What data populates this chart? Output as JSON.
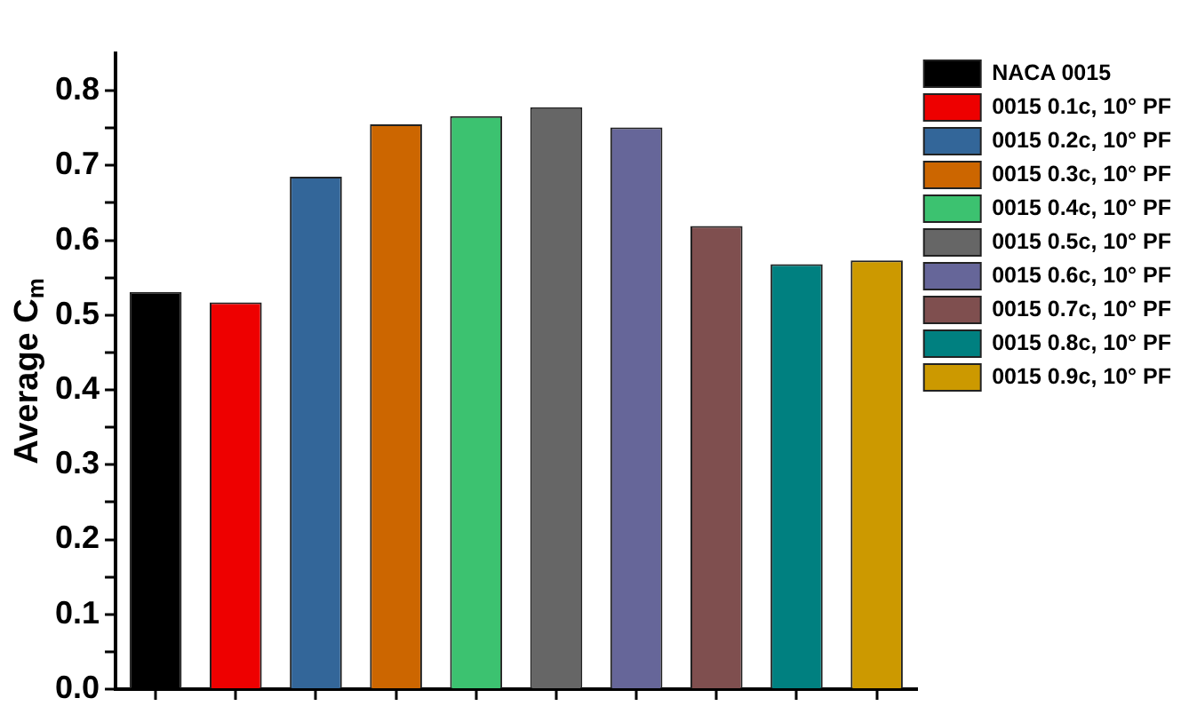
{
  "chart_data": {
    "type": "bar",
    "ylabel": "Average C$_{m}$",
    "categories": [
      null,
      null,
      null,
      null,
      null,
      null,
      null,
      null,
      null,
      null
    ],
    "series": [
      {
        "name": "NACA 0015",
        "color": "#000000",
        "values": [
          0.531,
          null,
          null,
          null,
          null,
          null,
          null,
          null,
          null,
          null
        ]
      },
      {
        "name": "0015 0.1c, 10° PF",
        "color": "#ee0000",
        "values": [
          null,
          0.517,
          null,
          null,
          null,
          null,
          null,
          null,
          null,
          null
        ]
      },
      {
        "name": "0015 0.2c, 10° PF",
        "color": "#336699",
        "values": [
          null,
          null,
          0.685,
          null,
          null,
          null,
          null,
          null,
          null,
          null
        ]
      },
      {
        "name": "0015 0.3c, 10° PF",
        "color": "#cc6600",
        "values": [
          null,
          null,
          null,
          0.755,
          null,
          null,
          null,
          null,
          null,
          null
        ]
      },
      {
        "name": "0015 0.4c, 10° PF",
        "color": "#3cc270",
        "values": [
          null,
          null,
          null,
          null,
          0.766,
          null,
          null,
          null,
          null,
          null
        ]
      },
      {
        "name": "0015 0.5c, 10° PF",
        "color": "#666666",
        "values": [
          null,
          null,
          null,
          null,
          null,
          0.778,
          null,
          null,
          null,
          null
        ]
      },
      {
        "name": "0015 0.6c, 10° PF",
        "color": "#666699",
        "values": [
          null,
          null,
          null,
          null,
          null,
          null,
          0.751,
          null,
          null,
          null
        ]
      },
      {
        "name": "0015 0.7c, 10° PF",
        "color": "#7f4f4f",
        "values": [
          null,
          null,
          null,
          null,
          null,
          null,
          null,
          0.619,
          null,
          null
        ]
      },
      {
        "name": "0015 0.8c, 10° PF",
        "color": "#008080",
        "values": [
          null,
          null,
          null,
          null,
          null,
          null,
          null,
          null,
          0.568,
          null
        ]
      },
      {
        "name": "0015 0.9c, 10° PF",
        "color": "#cc9900",
        "values": [
          null,
          null,
          null,
          null,
          null,
          null,
          null,
          null,
          null,
          0.573
        ]
      }
    ],
    "ylim": [
      0,
      0.85
    ],
    "yticks": [
      {
        "value": 0,
        "label": "0.0"
      },
      {
        "value": 0.05,
        "label": null
      },
      0.1,
      {
        "value": 0.15,
        "label": null
      },
      0.2,
      {
        "value": 0.25,
        "label": null
      },
      0.3,
      {
        "value": 0.35,
        "label": null
      },
      0.4,
      {
        "value": 0.45,
        "label": null
      },
      0.5,
      {
        "value": 0.55,
        "label": null
      },
      0.6,
      {
        "value": 0.65,
        "label": null
      },
      0.7,
      {
        "value": 0.75,
        "label": null
      },
      0.8
    ],
    "tick_labels": "y",
    "grid": false,
    "legend": "top right"
  }
}
